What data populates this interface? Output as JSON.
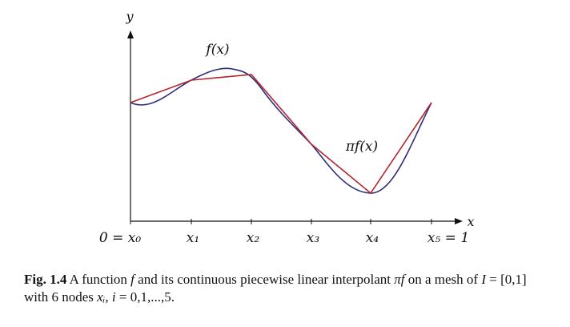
{
  "axes": {
    "y_label": "y",
    "x_label": "x"
  },
  "nodes": [
    {
      "label": "0 = x₀"
    },
    {
      "label": "x₁"
    },
    {
      "label": "x₂"
    },
    {
      "label": "x₃"
    },
    {
      "label": "x₄"
    },
    {
      "label": "x₅ = 1"
    }
  ],
  "curves": {
    "f_label": "f(x)",
    "f_color": "#2e2d7a",
    "interp_label": "πf(x)",
    "interp_color": "#b32631"
  },
  "caption": {
    "fig_number": "Fig. 1.4",
    "text_1": " A function ",
    "f": "f",
    "text_2": " and its continuous piecewise linear interpolant ",
    "pif": "πf",
    "text_3": " on a mesh of ",
    "I": "I",
    "text_4": " = [0,1]",
    "line2_text_1": "with 6 nodes ",
    "xi": "xᵢ",
    "comma": ", ",
    "i": "i",
    "line2_text_2": " = 0,1,...,5."
  }
}
